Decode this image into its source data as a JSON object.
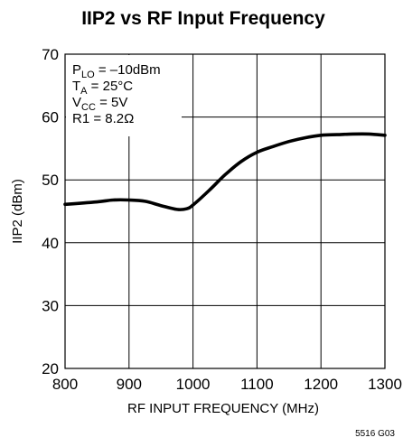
{
  "chart_data": {
    "type": "line",
    "title": "IIP2 vs RF Input Frequency",
    "xlabel": "RF INPUT FREQUENCY (MHz)",
    "ylabel": "IIP2 (dBm)",
    "xlim": [
      800,
      1300
    ],
    "ylim": [
      20,
      70
    ],
    "x_ticks": [
      800,
      900,
      1000,
      1100,
      1200,
      1300
    ],
    "y_ticks": [
      20,
      30,
      40,
      50,
      60,
      70
    ],
    "grid": true,
    "series": [
      {
        "x": [
          800,
          850,
          875,
          900,
          925,
          950,
          975,
          990,
          1000,
          1025,
          1050,
          1075,
          1100,
          1125,
          1150,
          1175,
          1200,
          1225,
          1250,
          1275,
          1300
        ],
        "y": [
          46.1,
          46.5,
          46.8,
          46.8,
          46.6,
          45.9,
          45.3,
          45.4,
          46.0,
          48.3,
          50.8,
          52.9,
          54.4,
          55.3,
          56.1,
          56.7,
          57.1,
          57.2,
          57.3,
          57.3,
          57.1
        ]
      }
    ],
    "annotations": [
      {
        "main": "P",
        "sub": "LO",
        "rest": " = –10dBm"
      },
      {
        "main": "T",
        "sub": "A",
        "rest": " = 25°C"
      },
      {
        "main": "V",
        "sub": "CC",
        "rest": " = 5V"
      },
      {
        "main": "R1 = 8.2Ω",
        "sub": "",
        "rest": ""
      }
    ],
    "figure_id": "5516 G03"
  }
}
